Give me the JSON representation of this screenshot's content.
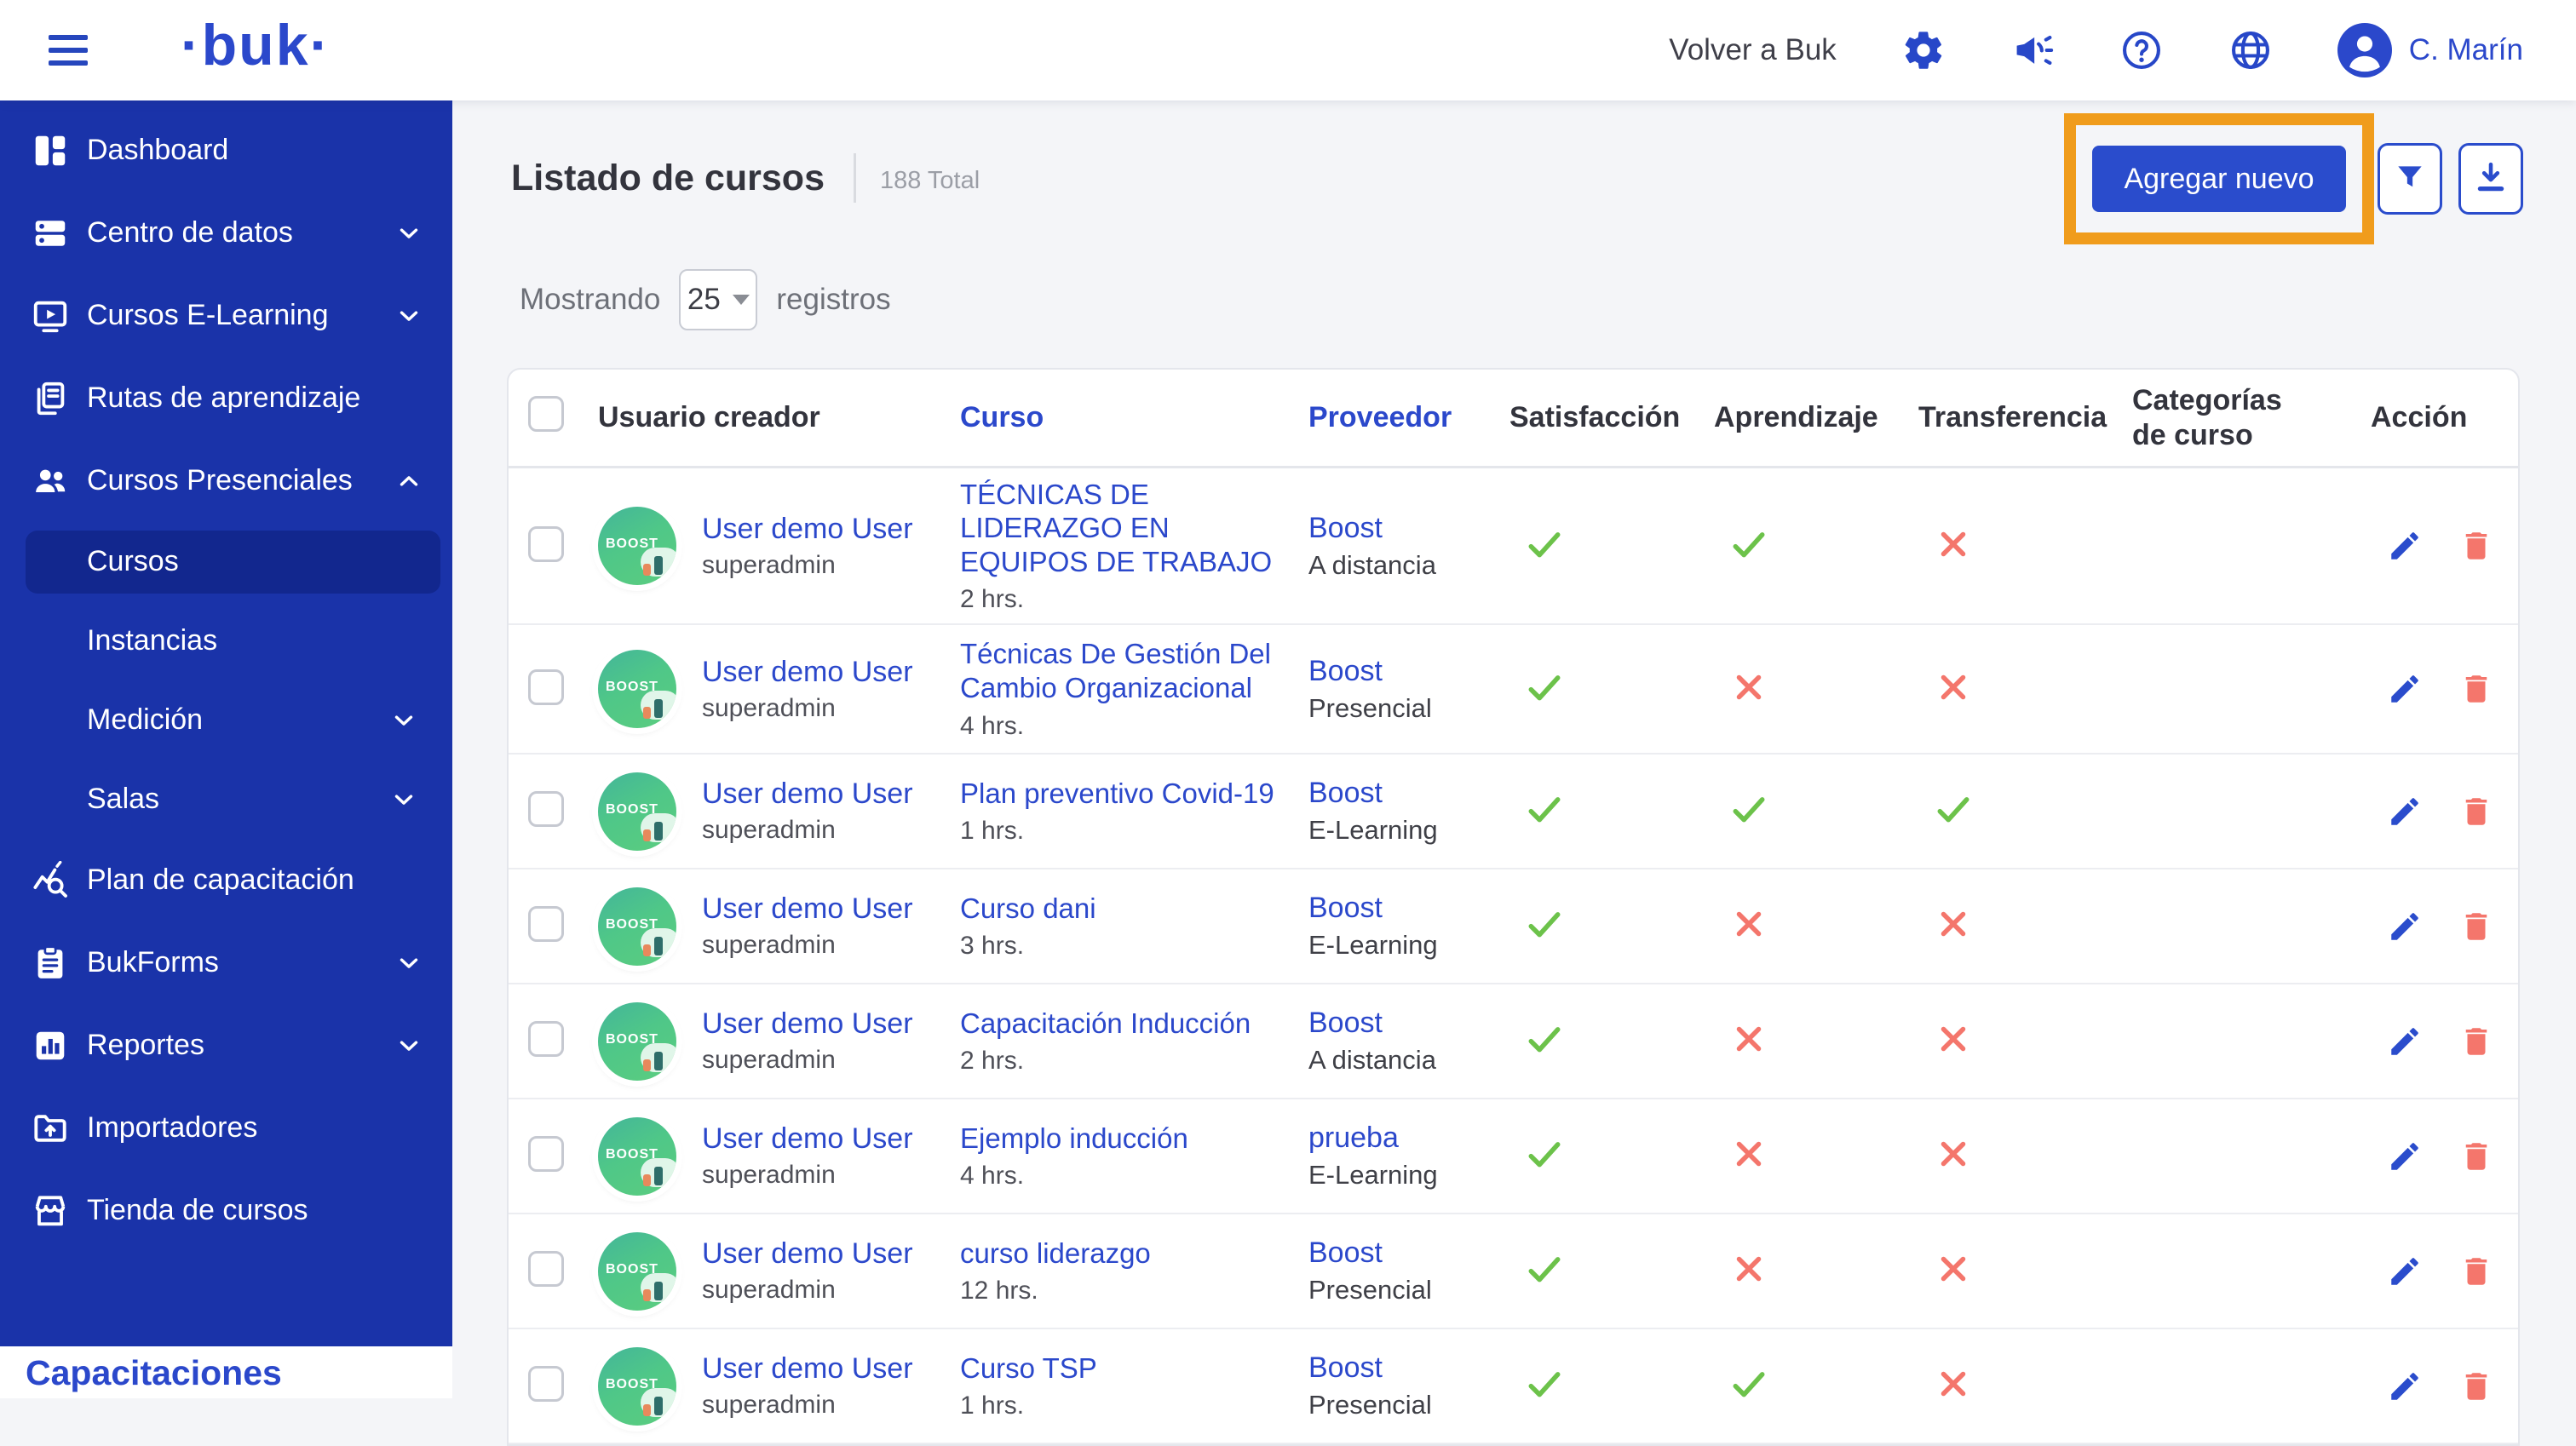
{
  "colors": {
    "accent_blue": "#2a4ccc",
    "link_blue": "#2b48cb",
    "sidebar_blue": "#1a33a9",
    "sidebar_active": "#12278e",
    "check_green": "#6cc24a",
    "cross_red": "#f4766c",
    "highlight_orange": "#f09c1c"
  },
  "header": {
    "logo": "·buk·",
    "back_link": "Volver a Buk",
    "user_name": "C. Marín",
    "icons": [
      "gear-icon",
      "megaphone-icon",
      "help-icon",
      "globe-icon"
    ]
  },
  "sidebar": {
    "items": [
      {
        "label": "Dashboard",
        "icon": "dashboard-icon",
        "type": "item"
      },
      {
        "label": "Centro de datos",
        "icon": "datacenter-icon",
        "type": "item",
        "chevron": "down"
      },
      {
        "label": "Cursos E-Learning",
        "icon": "elearning-icon",
        "type": "item",
        "chevron": "down"
      },
      {
        "label": "Rutas de aprendizaje",
        "icon": "routes-icon",
        "type": "item"
      },
      {
        "label": "Cursos Presenciales",
        "icon": "people-icon",
        "type": "item",
        "chevron": "up",
        "expanded": true
      },
      {
        "label": "Cursos",
        "type": "sub",
        "active": true
      },
      {
        "label": "Instancias",
        "type": "sub"
      },
      {
        "label": "Medición",
        "type": "sub",
        "chevron": "down"
      },
      {
        "label": "Salas",
        "type": "sub",
        "chevron": "down"
      },
      {
        "label": "Plan de capacitación",
        "icon": "training-plan-icon",
        "type": "item"
      },
      {
        "label": "BukForms",
        "icon": "forms-icon",
        "type": "item",
        "chevron": "down"
      },
      {
        "label": "Reportes",
        "icon": "reports-icon",
        "type": "item",
        "chevron": "down"
      },
      {
        "label": "Importadores",
        "icon": "importers-icon",
        "type": "item"
      },
      {
        "label": "Tienda de cursos",
        "icon": "store-icon",
        "type": "item"
      }
    ],
    "footer_logo": "·buk·",
    "module_label": "Capacitaciones"
  },
  "toolbar": {
    "title": "Listado de cursos",
    "total": "188 Total",
    "add_button": "Agregar nuevo",
    "showing_prefix": "Mostrando",
    "page_size": "25",
    "showing_suffix": "registros"
  },
  "table": {
    "columns": {
      "user": "Usuario creador",
      "course": "Curso",
      "provider": "Proveedor",
      "satisfaccion": "Satisfacción",
      "aprendizaje": "Aprendizaje",
      "transferencia": "Transferencia",
      "categorias": "Categorías de curso",
      "accion": "Acción"
    },
    "avatar_label": "BOOST",
    "rows": [
      {
        "user": "User demo User",
        "role": "superadmin",
        "course": "TÉCNICAS DE LIDERAZGO EN EQUIPOS DE TRABAJO",
        "duration": "2 hrs.",
        "provider": "Boost",
        "modality": "A distancia",
        "satisfaccion": true,
        "aprendizaje": true,
        "transferencia": false
      },
      {
        "user": "User demo User",
        "role": "superadmin",
        "course": "Técnicas De Gestión Del Cambio Organizacional",
        "duration": "4 hrs.",
        "provider": "Boost",
        "modality": "Presencial",
        "satisfaccion": true,
        "aprendizaje": false,
        "transferencia": false
      },
      {
        "user": "User demo User",
        "role": "superadmin",
        "course": "Plan preventivo Covid-19",
        "duration": "1 hrs.",
        "provider": "Boost",
        "modality": "E-Learning",
        "satisfaccion": true,
        "aprendizaje": true,
        "transferencia": true
      },
      {
        "user": "User demo User",
        "role": "superadmin",
        "course": "Curso dani",
        "duration": "3 hrs.",
        "provider": "Boost",
        "modality": "E-Learning",
        "satisfaccion": true,
        "aprendizaje": false,
        "transferencia": false
      },
      {
        "user": "User demo User",
        "role": "superadmin",
        "course": "Capacitación Inducción",
        "duration": "2 hrs.",
        "provider": "Boost",
        "modality": "A distancia",
        "satisfaccion": true,
        "aprendizaje": false,
        "transferencia": false
      },
      {
        "user": "User demo User",
        "role": "superadmin",
        "course": "Ejemplo inducción",
        "duration": "4 hrs.",
        "provider": "prueba",
        "modality": "E-Learning",
        "satisfaccion": true,
        "aprendizaje": false,
        "transferencia": false
      },
      {
        "user": "User demo User",
        "role": "superadmin",
        "course": "curso liderazgo",
        "duration": "12 hrs.",
        "provider": "Boost",
        "modality": "Presencial",
        "satisfaccion": true,
        "aprendizaje": false,
        "transferencia": false
      },
      {
        "user": "User demo User",
        "role": "superadmin",
        "course": "Curso TSP",
        "duration": "1 hrs.",
        "provider": "Boost",
        "modality": "Presencial",
        "satisfaccion": true,
        "aprendizaje": true,
        "transferencia": false
      }
    ]
  }
}
